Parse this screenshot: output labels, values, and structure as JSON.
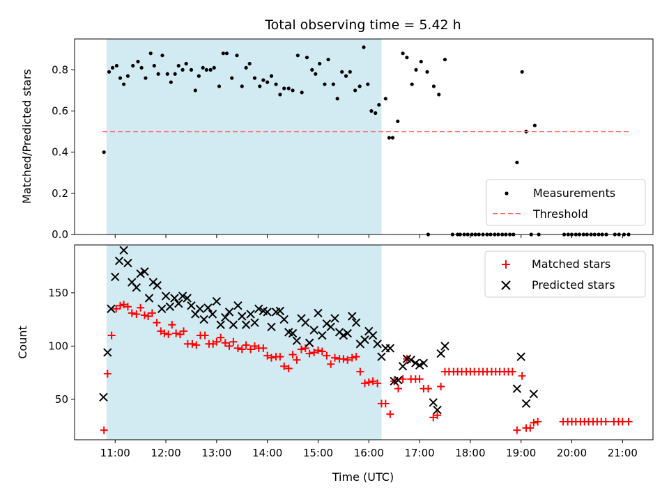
{
  "chart_data": {
    "type": "scatter",
    "title": "Total observing time = 5.42 h",
    "xlabel": "Time (UTC)",
    "x_unit": "hours UTC",
    "xlim": [
      10.2,
      21.6
    ],
    "x_ticks": [
      11,
      12,
      13,
      14,
      15,
      16,
      17,
      18,
      19,
      20,
      21
    ],
    "x_tick_labels": [
      "11:00",
      "12:00",
      "13:00",
      "14:00",
      "15:00",
      "16:00",
      "17:00",
      "18:00",
      "19:00",
      "20:00",
      "21:00"
    ],
    "highlight_span": {
      "x_start": 10.83,
      "x_end": 16.25,
      "color": "#add8e6"
    },
    "panels": [
      {
        "name": "ratio",
        "ylabel": "Matched/Predicted stars",
        "ylim": [
          0,
          0.95
        ],
        "y_ticks": [
          0.0,
          0.2,
          0.4,
          0.6,
          0.8
        ],
        "y_tick_labels": [
          "0.0",
          "0.2",
          "0.4",
          "0.6",
          "0.8"
        ],
        "legend_position": "lower-right",
        "series": [
          {
            "name": "Measurements",
            "marker": "dot",
            "color": "#000000",
            "x": [
              10.78,
              10.88,
              10.95,
              11.03,
              11.1,
              11.17,
              11.25,
              11.35,
              11.45,
              11.52,
              11.6,
              11.7,
              11.77,
              11.85,
              11.93,
              12.03,
              12.1,
              12.18,
              12.25,
              12.33,
              12.4,
              12.5,
              12.58,
              12.65,
              12.73,
              12.8,
              12.88,
              12.95,
              13.05,
              13.13,
              13.2,
              13.3,
              13.4,
              13.5,
              13.58,
              13.65,
              13.75,
              13.85,
              13.92,
              14.0,
              14.08,
              14.17,
              14.25,
              14.33,
              14.42,
              14.5,
              14.6,
              14.68,
              14.78,
              14.88,
              14.95,
              15.03,
              15.13,
              15.2,
              15.3,
              15.38,
              15.47,
              15.55,
              15.63,
              15.73,
              15.82,
              15.9,
              15.98,
              16.05,
              16.13,
              16.2,
              16.33,
              16.4,
              16.47,
              16.57,
              16.67,
              16.75,
              16.85,
              16.93,
              17.03,
              17.15,
              17.28,
              17.38,
              17.5,
              18.92,
              19.02,
              19.1,
              19.27,
              17.17,
              17.65,
              17.75,
              17.8,
              17.88,
              17.95,
              18.03,
              18.1,
              18.17,
              18.25,
              18.33,
              18.4,
              18.48,
              18.55,
              18.63,
              18.7,
              18.78,
              18.85,
              19.2,
              19.35,
              19.85,
              19.93,
              20.0,
              20.08,
              20.15,
              20.23,
              20.3,
              20.38,
              20.45,
              20.53,
              20.6,
              20.68,
              20.85,
              20.93,
              21.03,
              21.12
            ],
            "y": [
              0.4,
              0.79,
              0.81,
              0.82,
              0.76,
              0.73,
              0.77,
              0.82,
              0.84,
              0.81,
              0.76,
              0.88,
              0.82,
              0.78,
              0.87,
              0.78,
              0.74,
              0.78,
              0.82,
              0.8,
              0.83,
              0.8,
              0.7,
              0.77,
              0.81,
              0.8,
              0.8,
              0.81,
              0.72,
              0.88,
              0.88,
              0.76,
              0.87,
              0.72,
              0.81,
              0.83,
              0.76,
              0.72,
              0.75,
              0.74,
              0.77,
              0.73,
              0.68,
              0.71,
              0.71,
              0.7,
              0.87,
              0.69,
              0.86,
              0.8,
              0.78,
              0.83,
              0.73,
              0.85,
              0.73,
              0.66,
              0.79,
              0.77,
              0.79,
              0.7,
              0.72,
              0.91,
              0.73,
              0.6,
              0.59,
              0.63,
              0.66,
              0.47,
              0.47,
              0.55,
              0.88,
              0.86,
              0.73,
              0.8,
              0.84,
              0.79,
              0.72,
              0.68,
              0.85,
              0.35,
              0.79,
              0.5,
              0.53,
              0.0,
              0.0,
              0.0,
              0.0,
              0.0,
              0.0,
              0.0,
              0.0,
              0.0,
              0.0,
              0.0,
              0.0,
              0.0,
              0.0,
              0.0,
              0.0,
              0.0,
              0.0,
              0.0,
              0.0,
              0.0,
              0.0,
              0.0,
              0.0,
              0.0,
              0.0,
              0.0,
              0.0,
              0.0,
              0.0,
              0.0,
              0.0,
              0.0,
              0.0,
              0.0,
              0.0
            ]
          },
          {
            "name": "Threshold",
            "marker": "dashed-line",
            "color": "#ff7070",
            "x": [
              10.75,
              21.15
            ],
            "y": [
              0.5,
              0.5
            ]
          }
        ]
      },
      {
        "name": "counts",
        "ylabel": "Count",
        "ylim": [
          12,
          195
        ],
        "y_ticks": [
          50,
          100,
          150
        ],
        "y_tick_labels": [
          "50",
          "100",
          "150"
        ],
        "legend_position": "upper-right",
        "series": [
          {
            "name": "Matched stars",
            "marker": "plus",
            "color": "#ff0000",
            "x": [
              10.78,
              10.85,
              10.93,
              11.02,
              11.1,
              11.17,
              11.25,
              11.33,
              11.42,
              11.5,
              11.58,
              11.65,
              11.73,
              11.82,
              11.9,
              11.97,
              12.05,
              12.12,
              12.2,
              12.28,
              12.35,
              12.43,
              12.52,
              12.6,
              12.68,
              12.77,
              12.85,
              12.93,
              13.0,
              13.08,
              13.17,
              13.25,
              13.33,
              13.42,
              13.5,
              13.58,
              13.67,
              13.75,
              13.83,
              13.92,
              14.0,
              14.08,
              14.17,
              14.25,
              14.33,
              14.42,
              14.5,
              14.58,
              14.67,
              14.75,
              14.83,
              14.92,
              15.0,
              15.08,
              15.17,
              15.25,
              15.33,
              15.42,
              15.5,
              15.58,
              15.67,
              15.75,
              15.83,
              15.92,
              16.0,
              16.08,
              16.17,
              16.25,
              16.33,
              16.42,
              16.5,
              16.58,
              16.67,
              16.75,
              16.83,
              16.92,
              17.0,
              17.08,
              17.17,
              17.27,
              17.35,
              17.42,
              17.5,
              17.58,
              17.67,
              17.75,
              17.83,
              17.92,
              18.0,
              18.08,
              18.17,
              18.25,
              18.33,
              18.42,
              18.5,
              18.58,
              18.67,
              18.75,
              18.83,
              18.92,
              19.02,
              19.1,
              19.18,
              19.25,
              19.33,
              19.83,
              19.92,
              20.0,
              20.08,
              20.17,
              20.25,
              20.33,
              20.42,
              20.5,
              20.58,
              20.67,
              20.83,
              20.92,
              21.0,
              21.12
            ],
            "y": [
              21,
              74,
              110,
              135,
              138,
              139,
              137,
              131,
              130,
              136,
              129,
              128,
              131,
              122,
              114,
              112,
              111,
              120,
              112,
              111,
              114,
              102,
              102,
              101,
              110,
              110,
              102,
              102,
              104,
              108,
              103,
              100,
              104,
              98,
              97,
              101,
              97,
              100,
              98,
              98,
              91,
              89,
              90,
              90,
              81,
              79,
              92,
              87,
              97,
              98,
              93,
              94,
              96,
              95,
              91,
              83,
              89,
              88,
              88,
              87,
              89,
              90,
              76,
              65,
              66,
              67,
              65,
              46,
              46,
              36,
              67,
              60,
              69,
              88,
              69,
              69,
              69,
              60,
              60,
              33,
              35,
              62,
              76,
              76,
              76,
              76,
              76,
              76,
              76,
              76,
              76,
              76,
              76,
              76,
              76,
              76,
              76,
              76,
              76,
              21,
              72,
              23,
              23,
              28,
              29,
              29,
              29,
              29,
              29,
              29,
              29,
              29,
              29,
              29,
              29,
              29,
              29,
              29,
              29,
              29
            ]
          },
          {
            "name": "Predicted stars",
            "marker": "x",
            "color": "#000000",
            "x": [
              10.77,
              10.85,
              10.92,
              11.0,
              11.08,
              11.17,
              11.25,
              11.33,
              11.42,
              11.5,
              11.58,
              11.67,
              11.75,
              11.83,
              11.92,
              12.0,
              12.08,
              12.17,
              12.25,
              12.33,
              12.42,
              12.5,
              12.58,
              12.67,
              12.75,
              12.83,
              12.92,
              13.0,
              13.08,
              13.17,
              13.25,
              13.33,
              13.42,
              13.5,
              13.58,
              13.67,
              13.75,
              13.83,
              13.92,
              14.0,
              14.08,
              14.17,
              14.25,
              14.33,
              14.42,
              14.5,
              14.58,
              14.67,
              14.75,
              14.83,
              14.92,
              15.0,
              15.08,
              15.17,
              15.25,
              15.33,
              15.42,
              15.5,
              15.58,
              15.67,
              15.75,
              15.83,
              15.92,
              16.0,
              16.08,
              16.17,
              16.25,
              16.33,
              16.42,
              16.5,
              16.58,
              16.67,
              16.75,
              16.83,
              16.92,
              17.0,
              17.08,
              17.27,
              17.35,
              17.42,
              17.5,
              18.92,
              19.0,
              19.1,
              19.25
            ],
            "y": [
              52,
              94,
              135,
              165,
              180,
              190,
              178,
              160,
              155,
              168,
              170,
              145,
              160,
              157,
              135,
              147,
              137,
              145,
              140,
              147,
              145,
              138,
              130,
              135,
              125,
              136,
              130,
              142,
              120,
              127,
              132,
              120,
              138,
              128,
              120,
              130,
              122,
              135,
              133,
              132,
              118,
              132,
              133,
              125,
              113,
              112,
              105,
              126,
              122,
              103,
              115,
              131,
              110,
              121,
              118,
              126,
              113,
              110,
              112,
              128,
              122,
              102,
              106,
              114,
              110,
              102,
              90,
              98,
              98,
              67,
              68,
              81,
              88,
              87,
              84,
              82,
              84,
              47,
              40,
              93,
              100,
              60,
              90,
              46,
              55
            ]
          }
        ]
      }
    ]
  }
}
